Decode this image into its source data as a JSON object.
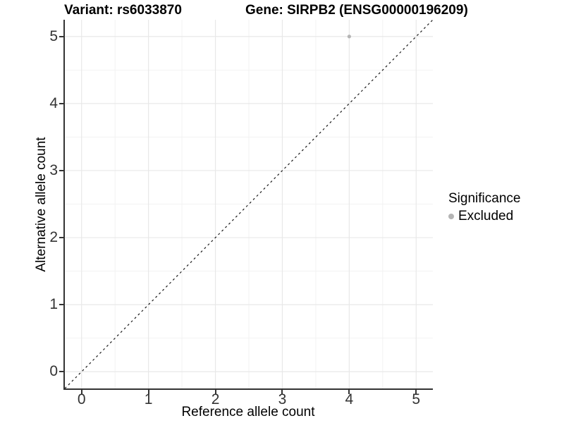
{
  "header": {
    "variant_title": "Variant: rs6033870",
    "gene_title": "Gene: SIRPB2 (ENSG00000196209)"
  },
  "chart_data": {
    "type": "scatter",
    "title_left": "Variant: rs6033870",
    "title_right": "Gene: SIRPB2 (ENSG00000196209)",
    "xlabel": "Reference allele count",
    "ylabel": "Alternative allele count",
    "xlim": [
      -0.25,
      5.25
    ],
    "ylim": [
      -0.25,
      5.25
    ],
    "x_ticks": [
      0,
      1,
      2,
      3,
      4,
      5
    ],
    "y_ticks": [
      0,
      1,
      2,
      3,
      4,
      5
    ],
    "x_minor_ticks": [
      0.5,
      1.5,
      2.5,
      3.5,
      4.5
    ],
    "y_minor_ticks": [
      0.5,
      1.5,
      2.5,
      3.5,
      4.5
    ],
    "grid": true,
    "points": [
      {
        "x": 4,
        "y": 5,
        "series": "Excluded"
      }
    ],
    "reference_line": {
      "type": "identity-diagonal",
      "style": "dashed"
    },
    "legend": {
      "title": "Significance",
      "position": "right",
      "entries": [
        {
          "label": "Excluded",
          "color": "#b5b5b5"
        }
      ]
    }
  },
  "colors": {
    "grid_major": "#e8e8e8",
    "grid_minor": "#f2f2f2",
    "axis_line": "#333333",
    "tick_text": "#333333",
    "diagonal": "#1a1a1a",
    "point": "#b5b5b5",
    "background": "#ffffff"
  }
}
